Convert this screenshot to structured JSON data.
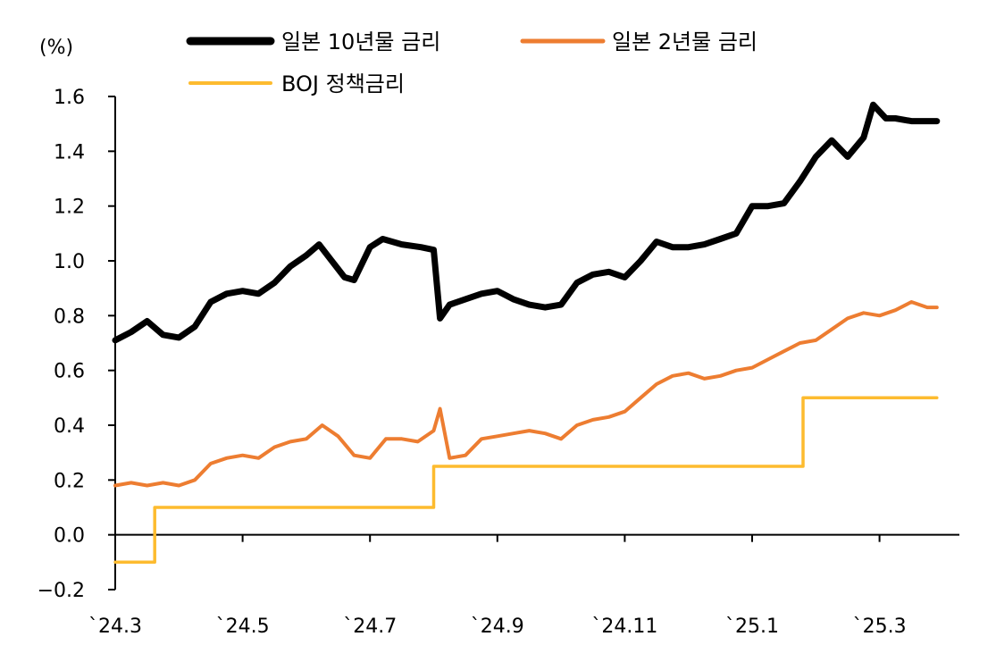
{
  "colors": {
    "jgb10y": "#000000",
    "jgb2y": "#ED7D31",
    "boj": "#FDBB2F",
    "axis": "#000000"
  },
  "chart_data": {
    "type": "line",
    "title": "",
    "xlabel": "",
    "ylabel": "(%)",
    "ylim": [
      -0.2,
      1.6
    ],
    "y_ticks": [
      "1.6",
      "1.4",
      "1.2",
      "1.0",
      "0.8",
      "0.6",
      "0.4",
      "0.2",
      "0.0",
      "−0.2"
    ],
    "y_tick_values": [
      1.6,
      1.4,
      1.2,
      1.0,
      0.8,
      0.6,
      0.4,
      0.2,
      0.0,
      -0.2
    ],
    "x_ticks": [
      "`24.3",
      "`24.5",
      "`24.7",
      "`24.9",
      "`24.11",
      "`25.1",
      "`25.3"
    ],
    "x_tick_positions": [
      0,
      2,
      4,
      6,
      8,
      10,
      12
    ],
    "xlim": [
      0,
      13.4
    ],
    "legend_position": "top",
    "series": [
      {
        "name": "일본 10년물 금리",
        "color": "#000000",
        "x": [
          0,
          0.25,
          0.5,
          0.75,
          1.0,
          1.25,
          1.5,
          1.75,
          2.0,
          2.25,
          2.5,
          2.75,
          3.0,
          3.2,
          3.4,
          3.6,
          3.75,
          4.0,
          4.2,
          4.5,
          4.8,
          5.0,
          5.1,
          5.25,
          5.5,
          5.75,
          6.0,
          6.25,
          6.5,
          6.75,
          7.0,
          7.25,
          7.5,
          7.75,
          8.0,
          8.25,
          8.5,
          8.75,
          9.0,
          9.25,
          9.5,
          9.75,
          10.0,
          10.25,
          10.5,
          10.75,
          11.0,
          11.25,
          11.5,
          11.75,
          11.9,
          12.1,
          12.25,
          12.5,
          12.6,
          12.75,
          12.9
        ],
        "y": [
          0.71,
          0.74,
          0.78,
          0.73,
          0.72,
          0.76,
          0.85,
          0.88,
          0.89,
          0.88,
          0.92,
          0.98,
          1.02,
          1.06,
          1.0,
          0.94,
          0.93,
          1.05,
          1.08,
          1.06,
          1.05,
          1.04,
          0.79,
          0.84,
          0.86,
          0.88,
          0.89,
          0.86,
          0.84,
          0.83,
          0.84,
          0.92,
          0.95,
          0.96,
          0.94,
          1.0,
          1.07,
          1.05,
          1.05,
          1.06,
          1.08,
          1.1,
          1.2,
          1.2,
          1.21,
          1.29,
          1.38,
          1.44,
          1.38,
          1.45,
          1.57,
          1.52,
          1.52,
          1.51,
          1.51,
          1.51,
          1.51
        ]
      },
      {
        "name": "일본 2년물 금리",
        "color": "#ED7D31",
        "x": [
          0,
          0.25,
          0.5,
          0.75,
          1.0,
          1.25,
          1.5,
          1.75,
          2.0,
          2.25,
          2.5,
          2.75,
          3.0,
          3.25,
          3.5,
          3.75,
          4.0,
          4.25,
          4.5,
          4.75,
          5.0,
          5.1,
          5.25,
          5.5,
          5.75,
          6.0,
          6.25,
          6.5,
          6.75,
          7.0,
          7.25,
          7.5,
          7.75,
          8.0,
          8.25,
          8.5,
          8.75,
          9.0,
          9.25,
          9.5,
          9.75,
          10.0,
          10.25,
          10.5,
          10.75,
          11.0,
          11.25,
          11.5,
          11.75,
          12.0,
          12.25,
          12.5,
          12.75,
          12.9
        ],
        "y": [
          0.18,
          0.19,
          0.18,
          0.19,
          0.18,
          0.2,
          0.26,
          0.28,
          0.29,
          0.28,
          0.32,
          0.34,
          0.35,
          0.4,
          0.36,
          0.29,
          0.28,
          0.35,
          0.35,
          0.34,
          0.38,
          0.46,
          0.28,
          0.29,
          0.35,
          0.36,
          0.37,
          0.38,
          0.37,
          0.35,
          0.4,
          0.42,
          0.43,
          0.45,
          0.5,
          0.55,
          0.58,
          0.59,
          0.57,
          0.58,
          0.6,
          0.61,
          0.64,
          0.67,
          0.7,
          0.71,
          0.75,
          0.79,
          0.81,
          0.8,
          0.82,
          0.85,
          0.83,
          0.83
        ]
      },
      {
        "name": "BOJ 정책금리",
        "color": "#FDBB2F",
        "step": true,
        "x": [
          0,
          0.62,
          0.62,
          5.0,
          5.0,
          10.8,
          10.8,
          12.9
        ],
        "y": [
          -0.1,
          -0.1,
          0.1,
          0.1,
          0.25,
          0.25,
          0.5,
          0.5
        ]
      }
    ]
  }
}
